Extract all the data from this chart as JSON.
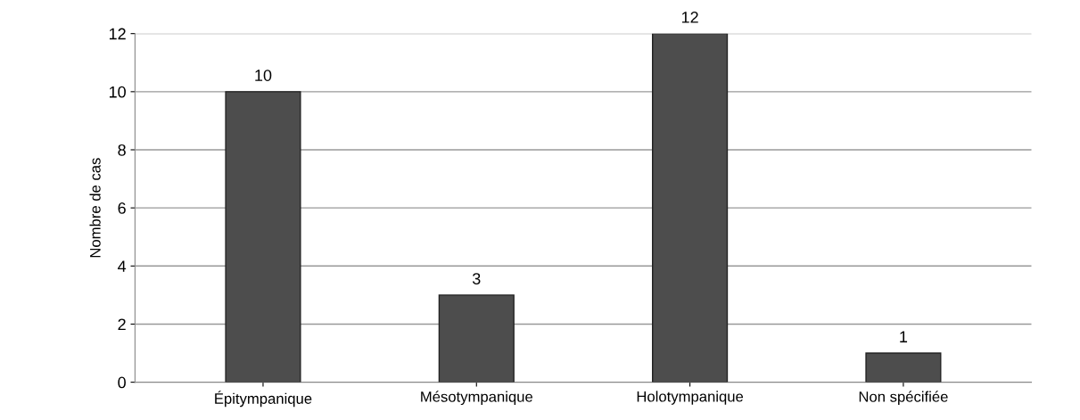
{
  "chart_data": {
    "type": "bar",
    "ylabel": "Nombre de cas",
    "categories": [
      "Épitympanique",
      "Mésotympanique",
      "Holotympanique",
      "Non spécifiée"
    ],
    "values": [
      10,
      3,
      12,
      1
    ],
    "color": "#4d4d4d",
    "ylim": [
      0,
      12
    ],
    "yticks": [
      0,
      2,
      4,
      6,
      8,
      10,
      12
    ],
    "grid": "y",
    "data_labels": true
  }
}
